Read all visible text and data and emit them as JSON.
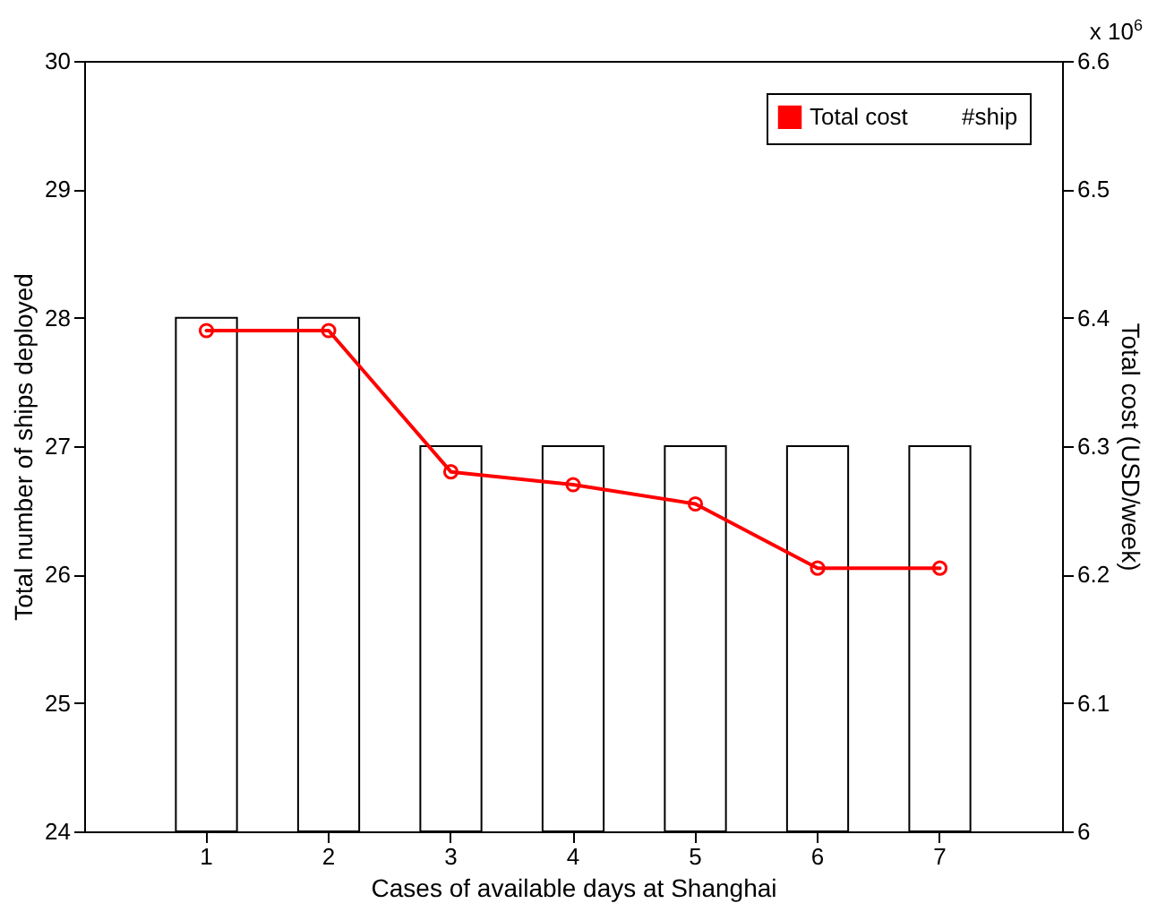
{
  "chart_data": {
    "type": "bar",
    "xlabel": "Cases of available days at Shanghai",
    "ylabel": "Total number of ships deployed",
    "y2label": "Total cost (USD/week)",
    "categories": [
      "1",
      "2",
      "3",
      "4",
      "5",
      "6",
      "7"
    ],
    "series": [
      {
        "name": "Total cost",
        "type": "line",
        "axis": "y2",
        "color": "#ff0000",
        "marker": "circle",
        "values": [
          6.39,
          6.39,
          6.28,
          6.27,
          6.255,
          6.205,
          6.205
        ]
      },
      {
        "name": "#ship",
        "color": "#ffffff",
        "values": [
          28,
          28,
          27,
          27,
          27,
          27,
          27
        ]
      }
    ],
    "ylim": [
      24,
      30
    ],
    "yticks": [
      24,
      25,
      26,
      27,
      28,
      29,
      30
    ],
    "y2lim": [
      6,
      6.6
    ],
    "y2ticks": [
      6,
      6.1,
      6.2,
      6.3,
      6.4,
      6.5,
      6.6
    ],
    "annotations": [
      "x 10$^{6}$"
    ],
    "legend": "top right",
    "grid": false
  }
}
